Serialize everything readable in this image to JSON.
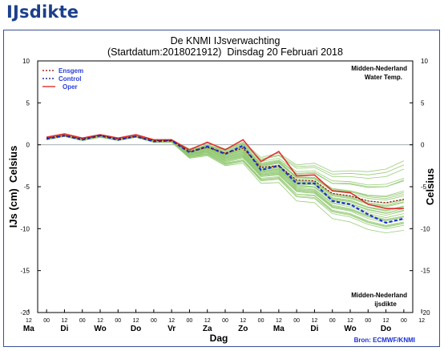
{
  "page": {
    "title": "IJsdikte"
  },
  "chart_data": {
    "type": "line",
    "title": "De KNMI IJsverwachting",
    "subtitle": "(Startdatum:2018021912)  Dinsdag 20 Februari 2018",
    "ylabel_left": "IJs (cm)  Celsius",
    "ylabel_right": "Celsius",
    "xlabel": "Dag",
    "ylim": [
      -20,
      10
    ],
    "yticks": [
      10,
      5,
      0,
      -5,
      -10,
      -15,
      -20
    ],
    "x": [
      0,
      1,
      2,
      3,
      4,
      5,
      6,
      7,
      8,
      9,
      10,
      11,
      12,
      13,
      14,
      15,
      16,
      17,
      18,
      19,
      20
    ],
    "xlim": [
      -0.5,
      20.5
    ],
    "hour_ticks": [
      "12",
      "00",
      "12",
      "00",
      "12",
      "00",
      "12",
      "00",
      "12",
      "00",
      "12",
      "00",
      "12",
      "00",
      "12",
      "00",
      "12",
      "00",
      "12",
      "00",
      "12",
      "00",
      "12"
    ],
    "day_labels": [
      {
        "label": "Ma",
        "at": -1
      },
      {
        "label": "Di",
        "at": 1
      },
      {
        "label": "Wo",
        "at": 3
      },
      {
        "label": "Do",
        "at": 5
      },
      {
        "label": "Vr",
        "at": 7
      },
      {
        "label": "Za",
        "at": 9
      },
      {
        "label": "Zo",
        "at": 11
      },
      {
        "label": "Ma",
        "at": 13
      },
      {
        "label": "Di",
        "at": 15
      },
      {
        "label": "Wo",
        "at": 17
      },
      {
        "label": "Do",
        "at": 19
      }
    ],
    "legend": {
      "position": "top-left",
      "entries": [
        {
          "label": "Ensgem",
          "color": "#8b0000",
          "style": "dotted"
        },
        {
          "label": "Control",
          "color": "#000080",
          "style": "dotted"
        },
        {
          "label": "Oper",
          "color": "#e03030",
          "style": "solid"
        }
      ]
    },
    "annotations": {
      "top_right": [
        "Midden-Nederland",
        "Water Temp."
      ],
      "bottom_right": [
        "Midden-Nederland",
        "ijsdikte"
      ],
      "source": "Bron: ECMWF/KNMI"
    },
    "colors": {
      "ensemble": "#8dc66a",
      "ensgem": "#8b0000",
      "control": "#1a2fd6",
      "oper": "#e03030",
      "zero_line": "#9aa0a6",
      "title": "#1b3f8b",
      "source": "#1a2fd6"
    },
    "series": [
      {
        "name": "Oper",
        "values": [
          0.9,
          1.3,
          0.8,
          1.2,
          0.8,
          1.2,
          0.6,
          0.6,
          -0.6,
          0.3,
          -0.6,
          0.6,
          -2.0,
          -0.8,
          -3.7,
          -3.6,
          -5.5,
          -5.7,
          -7.1,
          -7.6,
          -7.6
        ]
      },
      {
        "name": "Control",
        "values": [
          0.7,
          1.1,
          0.6,
          1.1,
          0.6,
          1.0,
          0.4,
          0.5,
          -0.9,
          -0.2,
          -1.1,
          -0.1,
          -3.0,
          -2.5,
          -4.6,
          -4.6,
          -6.7,
          -7.1,
          -8.3,
          -9.3,
          -8.8
        ]
      },
      {
        "name": "Ensgem",
        "values": [
          0.8,
          1.1,
          0.7,
          1.1,
          0.7,
          1.0,
          0.5,
          0.5,
          -0.8,
          -0.3,
          -1.0,
          -0.4,
          -2.7,
          -2.5,
          -4.2,
          -4.3,
          -5.8,
          -6.1,
          -6.7,
          -6.9,
          -6.5
        ]
      }
    ],
    "ensemble_members": [
      [
        0.7,
        1.0,
        0.6,
        1.0,
        0.6,
        0.9,
        0.3,
        0.4,
        -1.2,
        -0.8,
        -1.8,
        -1.2,
        -3.4,
        -3.1,
        -5.1,
        -5.3,
        -6.9,
        -7.2,
        -8.0,
        -8.4,
        -7.9
      ],
      [
        0.8,
        1.1,
        0.7,
        1.1,
        0.7,
        1.0,
        0.4,
        0.5,
        -0.9,
        -0.4,
        -1.3,
        -0.6,
        -2.8,
        -2.5,
        -4.3,
        -4.4,
        -5.9,
        -6.2,
        -6.9,
        -7.2,
        -6.6
      ],
      [
        0.6,
        1.0,
        0.5,
        0.9,
        0.5,
        0.9,
        0.3,
        0.3,
        -1.4,
        -1.0,
        -2.2,
        -1.8,
        -4.0,
        -3.8,
        -5.9,
        -6.0,
        -7.8,
        -8.2,
        -9.1,
        -9.6,
        -9.2
      ],
      [
        0.9,
        1.2,
        0.8,
        1.2,
        0.8,
        1.1,
        0.5,
        0.6,
        -0.7,
        -0.1,
        -0.9,
        -0.2,
        -2.3,
        -1.9,
        -3.5,
        -3.4,
        -4.6,
        -4.7,
        -5.1,
        -5.0,
        -4.2
      ],
      [
        0.7,
        1.1,
        0.6,
        1.0,
        0.6,
        1.0,
        0.4,
        0.4,
        -1.1,
        -0.6,
        -1.6,
        -1.0,
        -3.2,
        -2.9,
        -4.8,
        -5.0,
        -6.6,
        -7.0,
        -7.8,
        -8.2,
        -7.8
      ],
      [
        0.8,
        1.1,
        0.7,
        1.1,
        0.7,
        1.0,
        0.5,
        0.5,
        -0.8,
        -0.2,
        -1.0,
        -0.3,
        -2.4,
        -2.0,
        -3.8,
        -3.9,
        -5.2,
        -5.5,
        -6.0,
        -6.1,
        -5.5
      ],
      [
        0.7,
        1.0,
        0.6,
        1.0,
        0.6,
        0.9,
        0.4,
        0.4,
        -1.3,
        -0.9,
        -2.0,
        -1.5,
        -3.7,
        -3.5,
        -5.5,
        -5.7,
        -7.4,
        -7.8,
        -8.6,
        -9.1,
        -8.6
      ],
      [
        0.8,
        1.2,
        0.7,
        1.1,
        0.7,
        1.1,
        0.5,
        0.5,
        -0.6,
        0.0,
        -0.7,
        0.1,
        -1.8,
        -1.3,
        -2.8,
        -2.7,
        -3.8,
        -3.8,
        -4.0,
        -3.8,
        -2.9
      ],
      [
        0.7,
        1.1,
        0.6,
        1.0,
        0.6,
        1.0,
        0.3,
        0.4,
        -1.0,
        -0.5,
        -1.5,
        -0.9,
        -3.0,
        -2.7,
        -4.6,
        -4.7,
        -6.3,
        -6.6,
        -7.4,
        -7.8,
        -7.3
      ],
      [
        0.6,
        1.0,
        0.5,
        0.9,
        0.5,
        0.9,
        0.3,
        0.3,
        -1.5,
        -1.2,
        -2.4,
        -2.0,
        -4.3,
        -4.1,
        -6.2,
        -6.4,
        -8.2,
        -8.6,
        -9.5,
        -10.0,
        -9.6
      ],
      [
        0.8,
        1.1,
        0.7,
        1.1,
        0.7,
        1.0,
        0.5,
        0.5,
        -0.9,
        -0.3,
        -1.2,
        -0.5,
        -2.6,
        -2.2,
        -4.0,
        -4.1,
        -5.5,
        -5.8,
        -6.4,
        -6.6,
        -6.1
      ],
      [
        0.7,
        1.0,
        0.6,
        1.0,
        0.6,
        0.9,
        0.4,
        0.4,
        -1.2,
        -0.7,
        -1.9,
        -1.4,
        -3.6,
        -3.3,
        -5.2,
        -5.4,
        -7.0,
        -7.4,
        -8.2,
        -8.7,
        -8.2
      ],
      [
        0.8,
        1.2,
        0.7,
        1.2,
        0.7,
        1.1,
        0.5,
        0.6,
        -0.7,
        -0.1,
        -0.8,
        0.0,
        -2.0,
        -1.6,
        -3.2,
        -3.1,
        -4.3,
        -4.4,
        -4.8,
        -4.7,
        -4.0
      ],
      [
        0.7,
        1.1,
        0.6,
        1.0,
        0.6,
        1.0,
        0.4,
        0.4,
        -1.0,
        -0.5,
        -1.4,
        -0.8,
        -3.0,
        -2.6,
        -4.5,
        -4.6,
        -6.1,
        -6.4,
        -7.1,
        -7.4,
        -6.9
      ],
      [
        0.6,
        1.0,
        0.5,
        0.9,
        0.5,
        0.9,
        0.3,
        0.3,
        -1.6,
        -1.3,
        -2.5,
        -2.2,
        -4.6,
        -4.5,
        -6.7,
        -6.9,
        -8.8,
        -9.2,
        -10.1,
        -10.5,
        -10.2
      ],
      [
        0.8,
        1.1,
        0.7,
        1.1,
        0.7,
        1.0,
        0.5,
        0.5,
        -0.8,
        -0.2,
        -1.1,
        -0.4,
        -2.5,
        -2.1,
        -3.9,
        -3.9,
        -5.3,
        -5.5,
        -6.1,
        -6.2,
        -5.7
      ],
      [
        0.7,
        1.0,
        0.6,
        1.0,
        0.6,
        0.9,
        0.4,
        0.4,
        -1.1,
        -0.7,
        -1.7,
        -1.2,
        -3.3,
        -3.0,
        -5.0,
        -5.1,
        -6.7,
        -7.0,
        -7.7,
        -8.1,
        -7.6
      ],
      [
        0.9,
        1.2,
        0.8,
        1.2,
        0.8,
        1.1,
        0.6,
        0.6,
        -0.5,
        0.2,
        -0.5,
        0.3,
        -1.5,
        -1.0,
        -2.4,
        -2.2,
        -3.2,
        -3.1,
        -3.2,
        -2.9,
        -1.9
      ],
      [
        0.7,
        1.1,
        0.6,
        1.0,
        0.6,
        1.0,
        0.3,
        0.4,
        -1.2,
        -0.8,
        -1.8,
        -1.3,
        -3.5,
        -3.2,
        -5.3,
        -5.5,
        -7.2,
        -7.6,
        -8.4,
        -8.9,
        -8.5
      ],
      [
        0.8,
        1.1,
        0.7,
        1.1,
        0.7,
        1.0,
        0.5,
        0.5,
        -0.9,
        -0.4,
        -1.3,
        -0.7,
        -2.9,
        -2.6,
        -4.4,
        -4.5,
        -6.0,
        -6.3,
        -7.0,
        -7.3,
        -6.8
      ],
      [
        0.7,
        1.0,
        0.6,
        1.0,
        0.6,
        0.9,
        0.4,
        0.4,
        -1.3,
        -0.9,
        -2.1,
        -1.6,
        -3.8,
        -3.6,
        -5.6,
        -5.8,
        -7.5,
        -7.9,
        -8.8,
        -9.3,
        -8.9
      ],
      [
        0.8,
        1.2,
        0.7,
        1.1,
        0.7,
        1.1,
        0.5,
        0.5,
        -0.7,
        -0.1,
        -0.9,
        -0.1,
        -2.2,
        -1.8,
        -3.4,
        -3.3,
        -4.6,
        -4.6,
        -5.0,
        -5.0,
        -4.3
      ],
      [
        0.7,
        1.0,
        0.6,
        1.0,
        0.6,
        0.9,
        0.3,
        0.4,
        -1.1,
        -0.6,
        -1.6,
        -1.1,
        -3.2,
        -2.9,
        -4.9,
        -5.0,
        -6.5,
        -6.8,
        -7.5,
        -7.9,
        -7.4
      ],
      [
        0.6,
        1.0,
        0.5,
        0.9,
        0.5,
        0.9,
        0.3,
        0.3,
        -1.5,
        -1.1,
        -2.3,
        -1.9,
        -4.2,
        -4.0,
        -6.1,
        -6.3,
        -8.0,
        -8.4,
        -9.3,
        -9.8,
        -9.4
      ],
      [
        0.8,
        1.1,
        0.7,
        1.1,
        0.7,
        1.0,
        0.5,
        0.5,
        -0.8,
        -0.3,
        -1.1,
        -0.4,
        -2.5,
        -2.1,
        -3.9,
        -4.0,
        -5.4,
        -5.6,
        -6.2,
        -6.4,
        -5.9
      ],
      [
        0.7,
        1.1,
        0.6,
        1.0,
        0.6,
        1.0,
        0.4,
        0.4,
        -1.0,
        -0.5,
        -1.5,
        -0.9,
        -3.1,
        -2.8,
        -4.7,
        -4.8,
        -6.4,
        -6.7,
        -7.5,
        -7.8,
        -7.3
      ],
      [
        0.9,
        1.2,
        0.8,
        1.2,
        0.8,
        1.1,
        0.5,
        0.6,
        -0.6,
        0.0,
        -0.6,
        0.2,
        -1.7,
        -1.2,
        -2.6,
        -2.5,
        -3.5,
        -3.4,
        -3.6,
        -3.3,
        -2.4
      ],
      [
        0.7,
        1.0,
        0.6,
        1.0,
        0.6,
        0.9,
        0.4,
        0.4,
        -1.2,
        -0.8,
        -1.9,
        -1.4,
        -3.6,
        -3.4,
        -5.4,
        -5.6,
        -7.3,
        -7.7,
        -8.5,
        -9.0,
        -8.6
      ],
      [
        0.6,
        1.0,
        0.5,
        0.9,
        0.5,
        0.9,
        0.3,
        0.3,
        -1.4,
        -1.1,
        -2.2,
        -1.8,
        -4.1,
        -3.9,
        -5.9,
        -6.1,
        -7.9,
        -8.3,
        -9.2,
        -9.7,
        -9.3
      ],
      [
        0.8,
        1.1,
        0.7,
        1.1,
        0.7,
        1.0,
        0.5,
        0.5,
        -0.9,
        -0.4,
        -1.2,
        -0.6,
        -2.7,
        -2.4,
        -4.2,
        -4.3,
        -5.8,
        -6.1,
        -6.7,
        -7.0,
        -6.5
      ]
    ]
  }
}
